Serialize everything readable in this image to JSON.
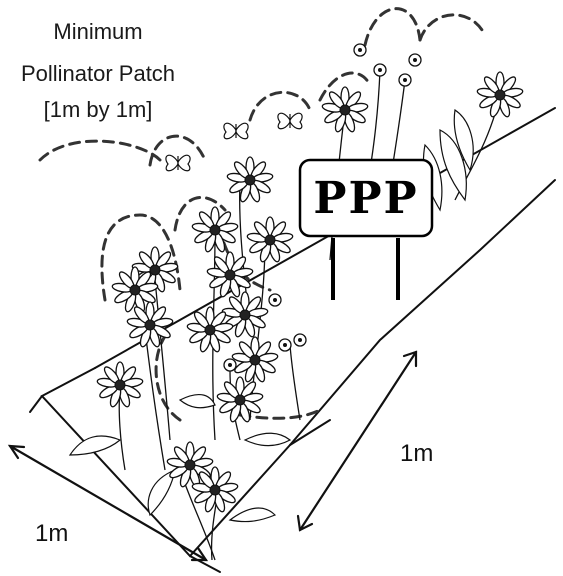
{
  "title": {
    "line1": "Minimum",
    "line2": "Pollinator Patch",
    "line3": "[1m by 1m]"
  },
  "sign": {
    "text": "PPP"
  },
  "dimensions": {
    "front": "1m",
    "side": "1m"
  },
  "colors": {
    "ink": "#111111",
    "background": "#ffffff"
  }
}
